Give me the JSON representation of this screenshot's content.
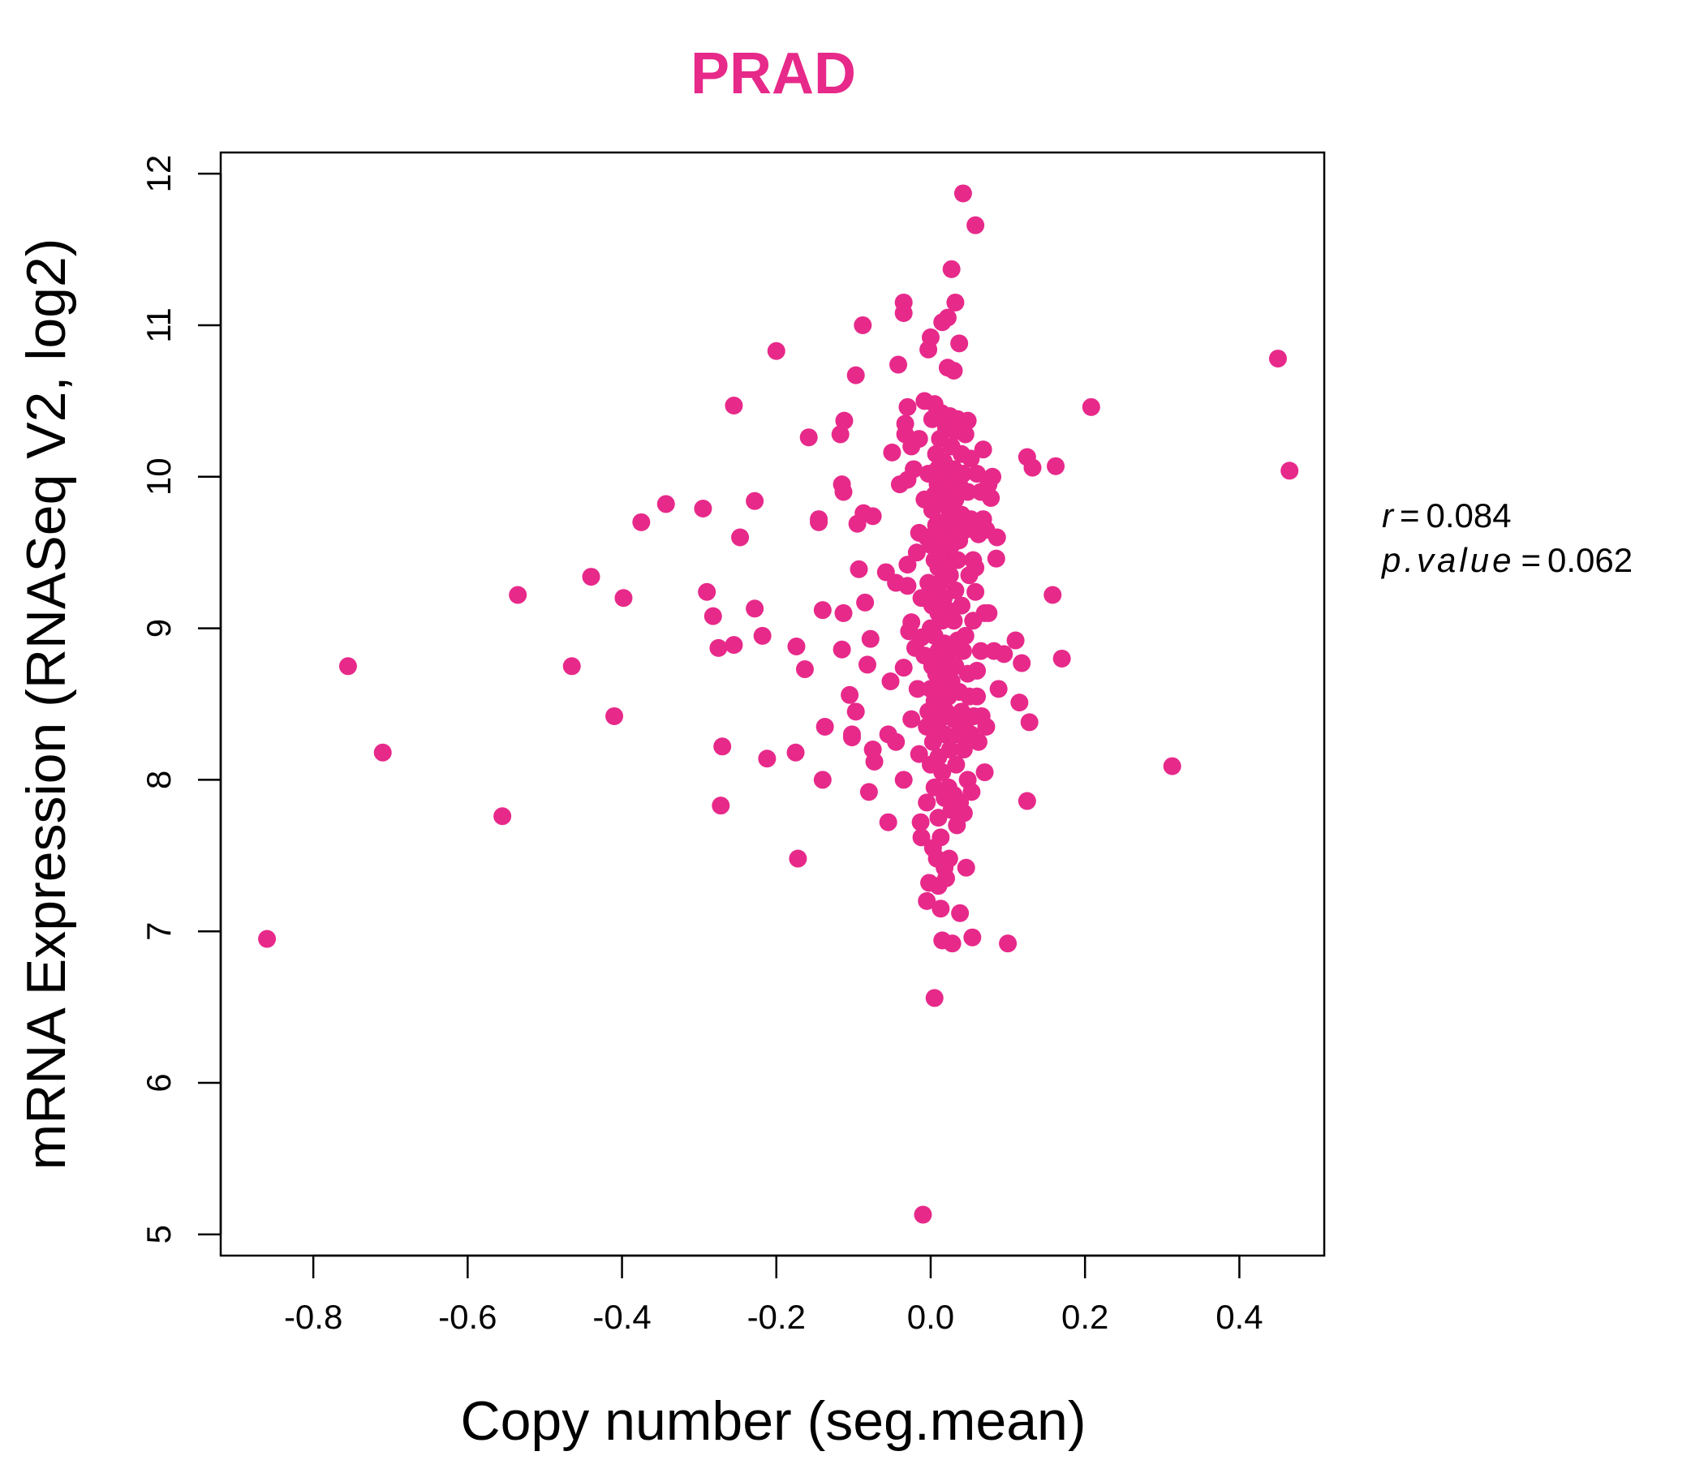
{
  "chart_data": {
    "type": "scatter",
    "title": "PRAD",
    "xlabel": "Copy number (seg.mean)",
    "ylabel": "mRNA Expression (RNASeq V2, log2)",
    "xlim": [
      -0.92,
      0.51
    ],
    "ylim": [
      4.86,
      12.14
    ],
    "xticks": [
      -0.8,
      -0.6,
      -0.4,
      -0.2,
      0.0,
      0.2,
      0.4
    ],
    "xtick_labels": [
      "-0.8",
      "-0.6",
      "-0.4",
      "-0.2",
      "0.0",
      "0.2",
      "0.4"
    ],
    "yticks": [
      5,
      6,
      7,
      8,
      9,
      10,
      11,
      12
    ],
    "ytick_labels": [
      "5",
      "6",
      "7",
      "8",
      "9",
      "10",
      "11",
      "12"
    ],
    "color": "#E7298A",
    "grid": false,
    "stats": {
      "r_label": "r",
      "r_value": "0.084",
      "p_label": "p.value",
      "p_value": "0.062"
    },
    "points": [
      [
        -0.86,
        6.95
      ],
      [
        -0.755,
        8.75
      ],
      [
        -0.71,
        8.18
      ],
      [
        -0.555,
        7.76
      ],
      [
        -0.535,
        9.22
      ],
      [
        -0.465,
        8.75
      ],
      [
        -0.44,
        9.34
      ],
      [
        -0.41,
        8.42
      ],
      [
        -0.398,
        9.2
      ],
      [
        -0.375,
        9.7
      ],
      [
        -0.343,
        9.82
      ],
      [
        -0.295,
        9.79
      ],
      [
        -0.29,
        9.24
      ],
      [
        -0.282,
        9.08
      ],
      [
        -0.275,
        8.87
      ],
      [
        -0.27,
        8.22
      ],
      [
        -0.272,
        7.83
      ],
      [
        -0.255,
        10.47
      ],
      [
        -0.255,
        8.89
      ],
      [
        -0.247,
        9.6
      ],
      [
        -0.228,
        9.84
      ],
      [
        -0.228,
        9.13
      ],
      [
        -0.218,
        8.95
      ],
      [
        -0.212,
        8.14
      ],
      [
        -0.2,
        10.83
      ],
      [
        -0.175,
        8.18
      ],
      [
        -0.174,
        8.88
      ],
      [
        -0.172,
        7.48
      ],
      [
        -0.163,
        8.73
      ],
      [
        -0.158,
        10.26
      ],
      [
        -0.145,
        9.7
      ],
      [
        -0.145,
        9.72
      ],
      [
        -0.14,
        9.12
      ],
      [
        -0.137,
        8.35
      ],
      [
        -0.14,
        8.0
      ],
      [
        -0.117,
        10.28
      ],
      [
        -0.112,
        10.37
      ],
      [
        -0.115,
        9.95
      ],
      [
        -0.113,
        9.9
      ],
      [
        -0.113,
        9.1
      ],
      [
        -0.115,
        8.86
      ],
      [
        -0.105,
        8.56
      ],
      [
        -0.102,
        8.3
      ],
      [
        -0.102,
        8.28
      ],
      [
        -0.097,
        8.45
      ],
      [
        -0.097,
        10.67
      ],
      [
        -0.095,
        9.69
      ],
      [
        -0.093,
        9.39
      ],
      [
        -0.088,
        11.0
      ],
      [
        -0.087,
        9.76
      ],
      [
        -0.085,
        9.17
      ],
      [
        -0.082,
        8.76
      ],
      [
        -0.08,
        7.92
      ],
      [
        -0.078,
        8.93
      ],
      [
        -0.075,
        9.74
      ],
      [
        -0.075,
        8.2
      ],
      [
        -0.073,
        8.12
      ],
      [
        -0.058,
        9.37
      ],
      [
        -0.055,
        8.3
      ],
      [
        -0.055,
        7.72
      ],
      [
        -0.052,
        8.65
      ],
      [
        -0.05,
        10.16
      ],
      [
        -0.045,
        9.3
      ],
      [
        -0.045,
        8.25
      ],
      [
        -0.042,
        10.74
      ],
      [
        -0.04,
        9.95
      ],
      [
        -0.035,
        11.15
      ],
      [
        -0.035,
        11.08
      ],
      [
        -0.033,
        10.28
      ],
      [
        -0.033,
        10.35
      ],
      [
        -0.035,
        8.74
      ],
      [
        -0.035,
        8.0
      ],
      [
        -0.03,
        10.46
      ],
      [
        -0.03,
        9.98
      ],
      [
        -0.03,
        9.28
      ],
      [
        -0.03,
        9.42
      ],
      [
        -0.028,
        8.98
      ],
      [
        -0.025,
        10.2
      ],
      [
        -0.025,
        9.04
      ],
      [
        -0.025,
        8.4
      ],
      [
        -0.022,
        10.05
      ],
      [
        -0.02,
        8.87
      ],
      [
        -0.018,
        9.5
      ],
      [
        -0.017,
        8.6
      ],
      [
        -0.015,
        10.25
      ],
      [
        -0.015,
        9.63
      ],
      [
        -0.015,
        8.17
      ],
      [
        -0.013,
        7.72
      ],
      [
        -0.012,
        9.2
      ],
      [
        -0.012,
        8.94
      ],
      [
        -0.012,
        7.62
      ],
      [
        -0.01,
        5.13
      ],
      [
        -0.008,
        10.5
      ],
      [
        -0.008,
        9.85
      ],
      [
        -0.008,
        8.82
      ],
      [
        -0.005,
        9.6
      ],
      [
        -0.005,
        8.35
      ],
      [
        -0.005,
        7.85
      ],
      [
        -0.005,
        7.2
      ],
      [
        -0.003,
        10.84
      ],
      [
        -0.003,
        10.02
      ],
      [
        -0.003,
        9.3
      ],
      [
        -0.003,
        8.45
      ],
      [
        -0.002,
        7.32
      ],
      [
        0.0,
        10.92
      ],
      [
        0.0,
        9.55
      ],
      [
        0.0,
        9.0
      ],
      [
        0.0,
        8.6
      ],
      [
        0.0,
        8.1
      ],
      [
        0.002,
        10.38
      ],
      [
        0.002,
        9.78
      ],
      [
        0.002,
        9.15
      ],
      [
        0.002,
        8.75
      ],
      [
        0.003,
        8.25
      ],
      [
        0.003,
        7.55
      ],
      [
        0.005,
        10.48
      ],
      [
        0.005,
        9.88
      ],
      [
        0.005,
        9.45
      ],
      [
        0.005,
        8.95
      ],
      [
        0.005,
        8.52
      ],
      [
        0.005,
        7.95
      ],
      [
        0.005,
        6.56
      ],
      [
        0.007,
        10.15
      ],
      [
        0.007,
        9.68
      ],
      [
        0.007,
        9.25
      ],
      [
        0.007,
        8.7
      ],
      [
        0.008,
        8.35
      ],
      [
        0.008,
        7.48
      ],
      [
        0.009,
        10.05
      ],
      [
        0.009,
        9.95
      ],
      [
        0.01,
        9.4
      ],
      [
        0.01,
        9.1
      ],
      [
        0.01,
        8.85
      ],
      [
        0.01,
        8.5
      ],
      [
        0.01,
        8.15
      ],
      [
        0.01,
        7.75
      ],
      [
        0.01,
        7.3
      ],
      [
        0.012,
        10.25
      ],
      [
        0.012,
        9.6
      ],
      [
        0.012,
        9.3
      ],
      [
        0.012,
        8.8
      ],
      [
        0.012,
        8.4
      ],
      [
        0.013,
        7.62
      ],
      [
        0.013,
        7.15
      ],
      [
        0.014,
        10.42
      ],
      [
        0.014,
        9.82
      ],
      [
        0.015,
        11.02
      ],
      [
        0.015,
        9.5
      ],
      [
        0.015,
        9.05
      ],
      [
        0.015,
        8.62
      ],
      [
        0.015,
        8.05
      ],
      [
        0.015,
        6.94
      ],
      [
        0.017,
        10.1
      ],
      [
        0.017,
        9.7
      ],
      [
        0.017,
        9.2
      ],
      [
        0.018,
        8.9
      ],
      [
        0.018,
        8.3
      ],
      [
        0.018,
        7.88
      ],
      [
        0.018,
        7.42
      ],
      [
        0.02,
        10.32
      ],
      [
        0.02,
        9.9
      ],
      [
        0.02,
        9.42
      ],
      [
        0.02,
        8.7
      ],
      [
        0.02,
        8.45
      ],
      [
        0.02,
        7.35
      ],
      [
        0.022,
        11.05
      ],
      [
        0.022,
        10.72
      ],
      [
        0.022,
        9.98
      ],
      [
        0.022,
        9.62
      ],
      [
        0.022,
        9.12
      ],
      [
        0.023,
        8.55
      ],
      [
        0.023,
        7.95
      ],
      [
        0.024,
        7.48
      ],
      [
        0.025,
        10.4
      ],
      [
        0.025,
        9.75
      ],
      [
        0.025,
        9.35
      ],
      [
        0.025,
        8.85
      ],
      [
        0.025,
        8.2
      ],
      [
        0.027,
        11.37
      ],
      [
        0.027,
        10.2
      ],
      [
        0.027,
        9.55
      ],
      [
        0.027,
        8.65
      ],
      [
        0.027,
        7.8
      ],
      [
        0.028,
        6.92
      ],
      [
        0.03,
        10.7
      ],
      [
        0.03,
        10.05
      ],
      [
        0.03,
        9.65
      ],
      [
        0.03,
        9.05
      ],
      [
        0.03,
        8.4
      ],
      [
        0.03,
        7.9
      ],
      [
        0.032,
        11.15
      ],
      [
        0.032,
        10.3
      ],
      [
        0.032,
        9.85
      ],
      [
        0.032,
        9.25
      ],
      [
        0.032,
        8.75
      ],
      [
        0.033,
        8.1
      ],
      [
        0.034,
        7.7
      ],
      [
        0.035,
        10.38
      ],
      [
        0.035,
        9.45
      ],
      [
        0.035,
        8.92
      ],
      [
        0.035,
        8.3
      ],
      [
        0.037,
        10.88
      ],
      [
        0.037,
        9.95
      ],
      [
        0.037,
        9.58
      ],
      [
        0.037,
        8.58
      ],
      [
        0.038,
        7.85
      ],
      [
        0.038,
        7.12
      ],
      [
        0.04,
        10.15
      ],
      [
        0.04,
        9.75
      ],
      [
        0.04,
        9.15
      ],
      [
        0.04,
        8.45
      ],
      [
        0.042,
        11.87
      ],
      [
        0.042,
        10.02
      ],
      [
        0.042,
        8.85
      ],
      [
        0.043,
        8.2
      ],
      [
        0.043,
        7.78
      ],
      [
        0.045,
        10.28
      ],
      [
        0.045,
        9.65
      ],
      [
        0.045,
        8.95
      ],
      [
        0.045,
        8.38
      ],
      [
        0.046,
        7.42
      ],
      [
        0.048,
        10.37
      ],
      [
        0.048,
        9.9
      ],
      [
        0.048,
        8.7
      ],
      [
        0.048,
        8.0
      ],
      [
        0.05,
        9.35
      ],
      [
        0.05,
        8.55
      ],
      [
        0.052,
        10.12
      ],
      [
        0.052,
        9.72
      ],
      [
        0.052,
        8.3
      ],
      [
        0.053,
        7.92
      ],
      [
        0.054,
        6.96
      ],
      [
        0.055,
        9.45
      ],
      [
        0.055,
        9.05
      ],
      [
        0.056,
        8.42
      ],
      [
        0.058,
        11.66
      ],
      [
        0.058,
        9.4
      ],
      [
        0.058,
        9.24
      ],
      [
        0.06,
        10.02
      ],
      [
        0.06,
        8.72
      ],
      [
        0.06,
        8.55
      ],
      [
        0.062,
        9.62
      ],
      [
        0.062,
        8.25
      ],
      [
        0.065,
        9.9
      ],
      [
        0.065,
        8.85
      ],
      [
        0.066,
        8.42
      ],
      [
        0.068,
        10.18
      ],
      [
        0.068,
        9.72
      ],
      [
        0.07,
        9.1
      ],
      [
        0.07,
        8.05
      ],
      [
        0.072,
        9.65
      ],
      [
        0.072,
        8.35
      ],
      [
        0.075,
        9.95
      ],
      [
        0.075,
        9.1
      ],
      [
        0.078,
        9.86
      ],
      [
        0.08,
        10.0
      ],
      [
        0.082,
        8.85
      ],
      [
        0.085,
        9.46
      ],
      [
        0.086,
        9.6
      ],
      [
        0.088,
        8.6
      ],
      [
        0.095,
        8.83
      ],
      [
        0.1,
        6.92
      ],
      [
        0.11,
        8.92
      ],
      [
        0.115,
        8.51
      ],
      [
        0.118,
        8.77
      ],
      [
        0.125,
        10.13
      ],
      [
        0.125,
        7.86
      ],
      [
        0.128,
        8.38
      ],
      [
        0.132,
        10.06
      ],
      [
        0.158,
        9.22
      ],
      [
        0.162,
        10.07
      ],
      [
        0.17,
        8.8
      ],
      [
        0.208,
        10.46
      ],
      [
        0.313,
        8.09
      ],
      [
        0.45,
        10.78
      ],
      [
        0.465,
        10.04
      ]
    ]
  }
}
